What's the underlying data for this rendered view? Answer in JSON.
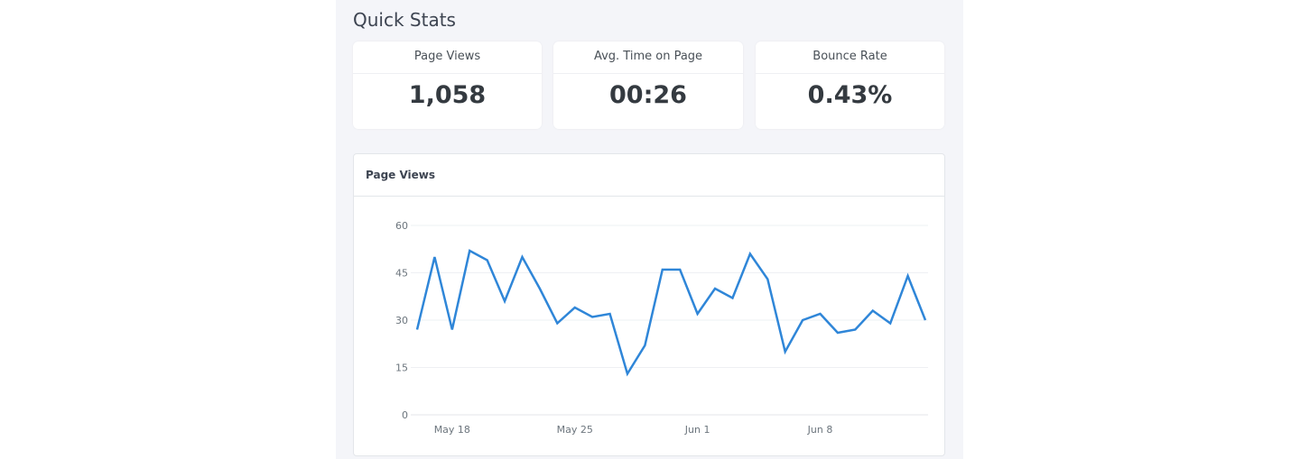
{
  "section_title": "Quick Stats",
  "stats": [
    {
      "label": "Page Views",
      "value": "1,058"
    },
    {
      "label": "Avg. Time on Page",
      "value": "00:26"
    },
    {
      "label": "Bounce Rate",
      "value": "0.43%"
    }
  ],
  "chart_card": {
    "title": "Page Views"
  },
  "chart_data": {
    "type": "line",
    "title": "Page Views",
    "ylim": [
      0,
      60
    ],
    "yticks": [
      "0",
      "15",
      "30",
      "45",
      "60"
    ],
    "xtick_labels": [
      {
        "label": "May 18",
        "index": 2
      },
      {
        "label": "May 25",
        "index": 9
      },
      {
        "label": "Jun 1",
        "index": 16
      },
      {
        "label": "Jun 8",
        "index": 23
      }
    ],
    "color": "#2f86d8",
    "x": [
      "May 16",
      "May 17",
      "May 18",
      "May 19",
      "May 20",
      "May 21",
      "May 22",
      "May 23",
      "May 24",
      "May 25",
      "May 26",
      "May 27",
      "May 28",
      "May 29",
      "May 30",
      "May 31",
      "Jun 1",
      "Jun 2",
      "Jun 3",
      "Jun 4",
      "Jun 5",
      "Jun 6",
      "Jun 7",
      "Jun 8",
      "Jun 9",
      "Jun 10",
      "Jun 11",
      "Jun 12",
      "Jun 13",
      "Jun 14"
    ],
    "values": [
      27,
      50,
      27,
      52,
      49,
      36,
      50,
      40,
      29,
      34,
      31,
      32,
      13,
      22,
      46,
      46,
      32,
      40,
      37,
      51,
      43,
      20,
      30,
      32,
      26,
      27,
      33,
      29,
      44,
      30
    ]
  }
}
